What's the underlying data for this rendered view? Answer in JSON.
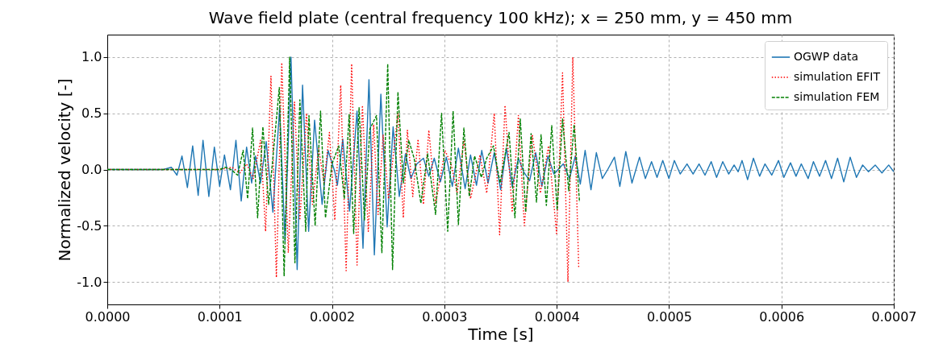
{
  "chart_data": {
    "type": "line",
    "title": "Wave field plate (central frequency 100 kHz); x = 250 mm, y = 450 mm",
    "xlabel": "Time [s]",
    "ylabel": "Normalized velocity [-]",
    "xlim": [
      0,
      0.0007
    ],
    "ylim": [
      -1.2,
      1.2
    ],
    "xticks": [
      {
        "value": 0,
        "label": "0.0000"
      },
      {
        "value": 0.0001,
        "label": "0.0001"
      },
      {
        "value": 0.0002,
        "label": "0.0002"
      },
      {
        "value": 0.0003,
        "label": "0.0003"
      },
      {
        "value": 0.0004,
        "label": "0.0004"
      },
      {
        "value": 0.0005,
        "label": "0.0005"
      },
      {
        "value": 0.0006,
        "label": "0.0006"
      },
      {
        "value": 0.0007,
        "label": "0.0007"
      }
    ],
    "yticks": [
      {
        "value": -1,
        "label": "-1.0"
      },
      -0.5,
      {
        "value": 0,
        "label": "0.0"
      },
      0.5,
      {
        "value": 1,
        "label": "1.0"
      }
    ],
    "grid": true,
    "legend": "top right",
    "marker": "none",
    "series": [
      {
        "name": "OGWP data",
        "color": "#1f77b4",
        "line_style": "solid",
        "x": [
          0,
          5e-05,
          5.7e-05,
          6.2e-05,
          6.65e-05,
          7.13e-05,
          7.6e-05,
          8.09e-05,
          8.52e-05,
          9.04e-05,
          9.53e-05,
          0.0001,
          0.0001043,
          0.0001096,
          0.0001145,
          0.0001192,
          0.000124,
          0.0001285,
          0.0001319,
          0.0001364,
          0.0001414,
          0.0001474,
          0.0001534,
          0.0001582,
          0.0001635,
          0.000169,
          0.0001738,
          0.0001792,
          0.0001845,
          0.0001912,
          0.0001965,
          0.0002025,
          0.0002048,
          0.0002096,
          0.0002156,
          0.0002223,
          0.0002276,
          0.0002329,
          0.0002377,
          0.0002435,
          0.0002491,
          0.0002544,
          0.0002599,
          0.0002654,
          0.0002702,
          0.0002755,
          0.0002814,
          0.0002862,
          0.000291,
          0.0002965,
          0.0003018,
          0.0003071,
          0.0003125,
          0.0003185,
          0.0003233,
          0.0003286,
          0.0003333,
          0.0003389,
          0.0003444,
          0.0003501,
          0.0003552,
          0.0003604,
          0.0003659,
          0.0003706,
          0.0003759,
          0.0003813,
          0.0003868,
          0.0003922,
          0.0003975,
          0.0004059,
          0.0004114,
          0.0004166,
          0.000421,
          0.0004253,
          0.0004305,
          0.0004353,
          0.0004406,
          0.0004454,
          0.0004514,
          0.0004562,
          0.0004615,
          0.000467,
          0.0004737,
          0.0004789,
          0.0004844,
          0.0004893,
          0.0004944,
          0.0004999,
          0.0005047,
          0.0005099,
          0.000516,
          0.0005214,
          0.0005267,
          0.000532,
          0.0005375,
          0.0005423,
          0.0005478,
          0.0005531,
          0.0005579,
          0.0005615,
          0.000565,
          0.0005699,
          0.0005751,
          0.0005806,
          0.0005854,
          0.0005914,
          0.0005974,
          0.0006022,
          0.0006081,
          0.000613,
          0.0006177,
          0.0006238,
          0.0006285,
          0.000634,
          0.0006393,
          0.0006446,
          0.00065,
          0.0006555,
          0.0006612,
          0.0006668,
          0.0006723,
          0.0006775,
          0.0006835,
          0.0006895,
          0.0006955,
          0.0007
        ],
        "values": [
          0,
          0,
          0.02,
          -0.05,
          0.12,
          -0.16,
          0.21,
          -0.23,
          0.26,
          -0.24,
          0.2,
          -0.15,
          0.13,
          -0.18,
          0.26,
          -0.28,
          0.2,
          -0.12,
          0.12,
          -0.12,
          0.25,
          -0.38,
          0.55,
          -0.64,
          1.0,
          -0.89,
          0.75,
          -0.55,
          0.44,
          -0.31,
          0.17,
          -0.02,
          -0.14,
          0.27,
          -0.37,
          0.52,
          -0.7,
          0.8,
          -0.76,
          0.67,
          -0.51,
          0.38,
          -0.24,
          0.14,
          -0.08,
          0.05,
          0.1,
          -0.06,
          0.1,
          -0.11,
          0.11,
          -0.15,
          0.19,
          -0.17,
          0.13,
          -0.14,
          0.17,
          -0.12,
          0.15,
          -0.18,
          0.19,
          -0.15,
          0.1,
          -0.02,
          -0.1,
          0.15,
          -0.15,
          0.12,
          -0.04,
          0.05,
          -0.08,
          0.12,
          -0.13,
          0.17,
          -0.18,
          0.15,
          -0.08,
          0,
          0.11,
          -0.15,
          0.16,
          -0.12,
          0.11,
          -0.08,
          0.07,
          -0.07,
          0.08,
          -0.08,
          0.08,
          -0.04,
          0.05,
          -0.04,
          0.05,
          -0.05,
          0.07,
          -0.07,
          0.07,
          -0.04,
          0.04,
          -0.02,
          0.08,
          -0.09,
          0.1,
          -0.06,
          0.05,
          -0.05,
          0.08,
          -0.07,
          0.06,
          -0.06,
          0.05,
          -0.08,
          0.07,
          -0.06,
          0.08,
          -0.08,
          0.1,
          -0.11,
          0.11,
          -0.07,
          0.04,
          -0.02,
          0.04,
          -0.03,
          0.04,
          -0.02
        ]
      },
      {
        "name": "simulation EFIT",
        "color": "#ff0000",
        "line_style": "dotted",
        "x": [
          0,
          0.0001,
          0.000111,
          0.000118,
          0.000124,
          0.00013,
          0.0001364,
          0.0001409,
          0.0001457,
          0.0001505,
          0.0001553,
          0.0001611,
          0.0001666,
          0.0001714,
          0.0001773,
          0.0001826,
          0.0001881,
          0.0001929,
          0.0001977,
          0.0002025,
          0.0002078,
          0.0002126,
          0.0002175,
          0.0002223,
          0.0002271,
          0.0002323,
          0.0002371,
          0.000241,
          0.0002455,
          0.0002503,
          0.0002587,
          0.0002635,
          0.0002671,
          0.0002719,
          0.0002766,
          0.0002814,
          0.0002862,
          0.0002922,
          0.0003006,
          0.000306,
          0.0003114,
          0.0003174,
          0.0003233,
          0.0003317,
          0.0003377,
          0.0003444,
          0.0003492,
          0.000354,
          0.0003604,
          0.0003659,
          0.0003712,
          0.0003783,
          0.0003855,
          0.0003927,
          0.0003999,
          0.0004052,
          0.00041,
          0.0004143,
          0.0004196
        ],
        "values": [
          0,
          0,
          0.02,
          -0.03,
          0.05,
          -0.08,
          0.26,
          -0.55,
          0.83,
          -0.96,
          0.95,
          -0.74,
          0.6,
          -0.45,
          0.5,
          -0.31,
          0.19,
          -0.12,
          0.33,
          -0.45,
          0.75,
          -0.9,
          0.94,
          -0.85,
          0.57,
          -0.55,
          0.4,
          -0.4,
          0.31,
          -0.26,
          0.5,
          -0.43,
          0.35,
          -0.24,
          0.27,
          -0.31,
          0.35,
          -0.31,
          0.17,
          0.05,
          -0.21,
          0.26,
          -0.26,
          0.13,
          -0.21,
          0.5,
          -0.58,
          0.57,
          -0.38,
          0.48,
          -0.5,
          0.31,
          -0.21,
          0.21,
          -0.57,
          0.86,
          -1.0,
          1.0,
          -0.87
        ]
      },
      {
        "name": "simulation FEM",
        "color": "#008000",
        "line_style": "dashed",
        "x": [
          0,
          0.0001,
          0.000105,
          0.0001101,
          0.000116,
          0.0001209,
          0.0001249,
          0.0001293,
          0.0001338,
          0.0001385,
          0.0001436,
          0.0001531,
          0.0001574,
          0.0001623,
          0.000167,
          0.0001714,
          0.0001766,
          0.0001795,
          0.000185,
          0.0001898,
          0.0001942,
          0.0002,
          0.000206,
          0.000211,
          0.0002153,
          0.0002193,
          0.0002241,
          0.0002289,
          0.0002337,
          0.0002396,
          0.0002444,
          0.0002496,
          0.0002539,
          0.0002587,
          0.0002635,
          0.0002683,
          0.0002731,
          0.0002791,
          0.0002851,
          0.0002922,
          0.0002975,
          0.000303,
          0.0003078,
          0.0003125,
          0.0003174,
          0.0003222,
          0.0003269,
          0.0003329,
          0.0003377,
          0.0003437,
          0.0003496,
          0.0003576,
          0.0003628,
          0.0003676,
          0.0003724,
          0.0003772,
          0.000382,
          0.0003861,
          0.0003908,
          0.0003956,
          0.0004004,
          0.0004052,
          0.0004107,
          0.0004155,
          0.0004203
        ],
        "values": [
          0,
          0,
          0.02,
          0,
          -0.05,
          0.17,
          -0.26,
          0.37,
          -0.43,
          0.38,
          -0.31,
          0.73,
          -0.95,
          1.0,
          -0.83,
          0.62,
          -0.55,
          0.48,
          -0.5,
          0.52,
          -0.43,
          0.05,
          0.21,
          -0.26,
          0.49,
          -0.57,
          0.55,
          -0.45,
          0.36,
          0.48,
          -0.74,
          0.94,
          -0.89,
          0.69,
          -0.12,
          0.26,
          0.1,
          -0.3,
          0.14,
          -0.4,
          0.5,
          -0.55,
          0.52,
          -0.49,
          0.37,
          -0.24,
          0.12,
          -0.07,
          0.1,
          0.21,
          -0.12,
          0.33,
          -0.43,
          0.45,
          -0.38,
          0.32,
          -0.29,
          0.31,
          -0.32,
          0.39,
          -0.36,
          0.45,
          -0.19,
          0.4,
          -0.29
        ]
      }
    ]
  }
}
